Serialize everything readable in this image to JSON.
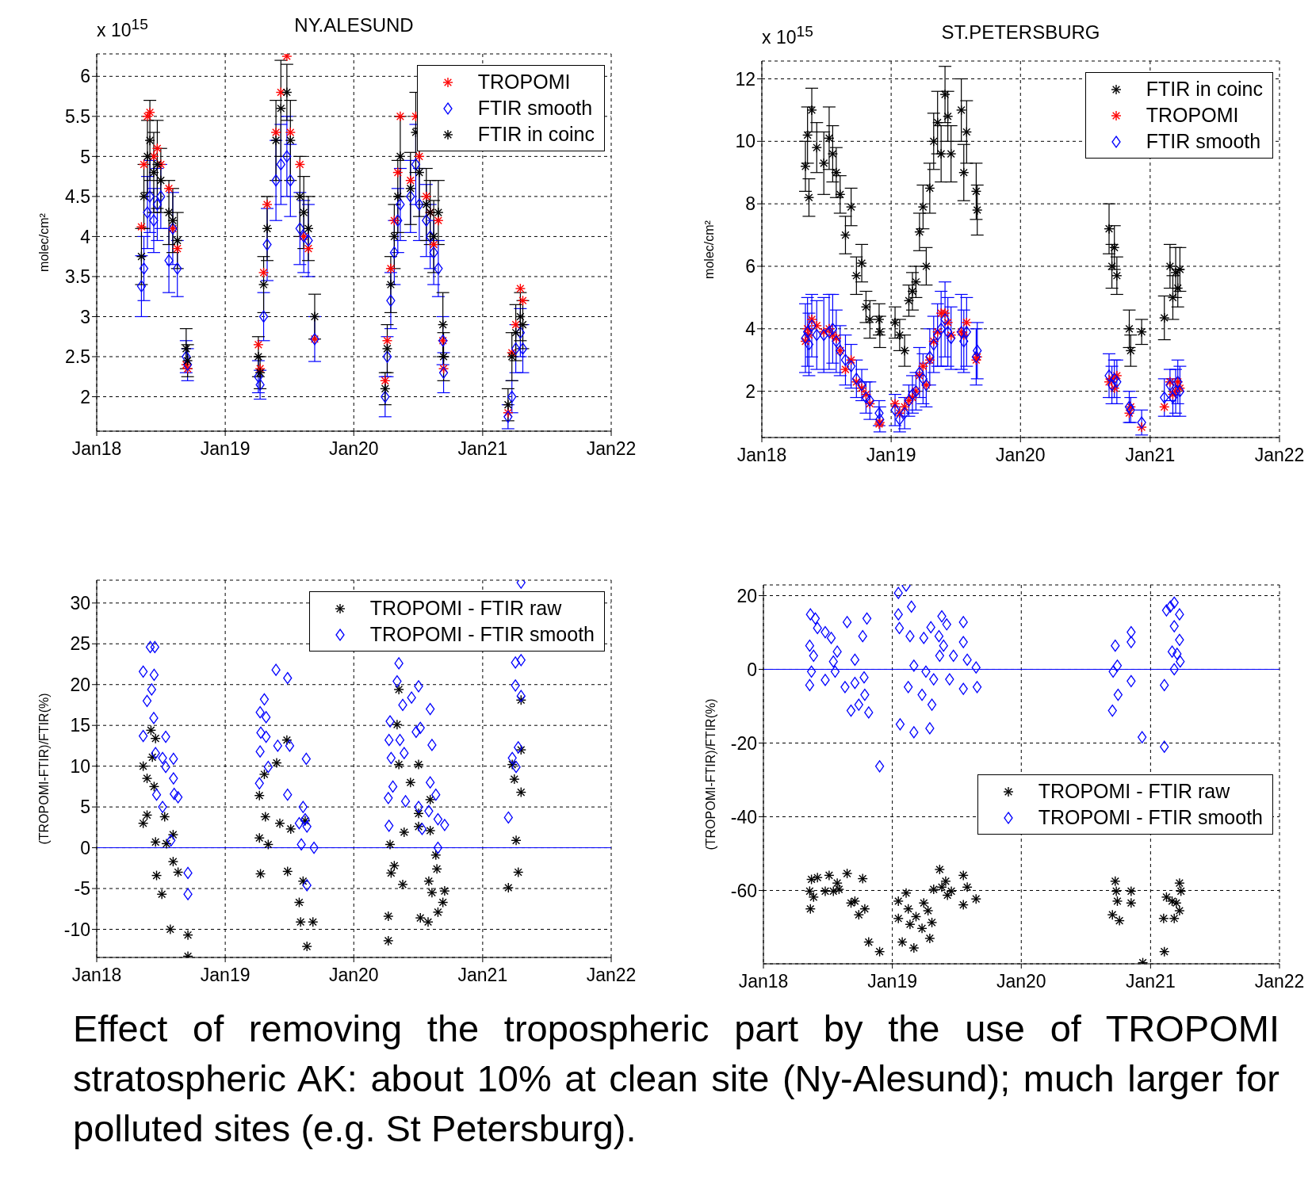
{
  "chart_data": [
    {
      "type": "scatter",
      "title": "NY.ALESUND",
      "ylabel": "molec/cm²",
      "annotations": [
        "x 10$^{15}$"
      ],
      "grid": true,
      "legend": "top right",
      "xlim": [
        "2018-01-01",
        "2022-01-01"
      ],
      "xticks": [
        {
          "value": "2018-01-01",
          "label": "Jan18"
        },
        {
          "value": "2019-01-01",
          "label": "Jan19"
        },
        {
          "value": "2020-01-01",
          "label": "Jan20"
        },
        {
          "value": "2021-01-01",
          "label": "Jan21"
        },
        {
          "value": "2022-01-01",
          "label": "Jan22"
        }
      ],
      "ylim": [
        1.57,
        6.28
      ],
      "yticks": [
        2,
        2.5,
        3,
        3.5,
        4,
        4.5,
        5,
        5.5,
        6
      ],
      "x": [
        "2018-05-08",
        "2018-05-15",
        "2018-05-25",
        "2018-06-01",
        "2018-06-12",
        "2018-06-22",
        "2018-07-02",
        "2018-07-25",
        "2018-08-05",
        "2018-08-18",
        "2018-09-12",
        "2018-09-16",
        "2019-04-05",
        "2019-04-10",
        "2019-04-20",
        "2019-04-30",
        "2019-05-25",
        "2019-06-08",
        "2019-06-25",
        "2019-07-05",
        "2019-08-01",
        "2019-08-12",
        "2019-08-25",
        "2019-09-12",
        "2020-03-30",
        "2020-04-05",
        "2020-04-15",
        "2020-04-25",
        "2020-05-05",
        "2020-05-12",
        "2020-06-10",
        "2020-06-25",
        "2020-07-05",
        "2020-07-25",
        "2020-08-05",
        "2020-08-15",
        "2020-08-28",
        "2020-09-10",
        "2020-09-12",
        "2021-03-14",
        "2021-03-25",
        "2021-04-05",
        "2021-04-18",
        "2021-04-25"
      ],
      "series": [
        {
          "name": "TROPOMI",
          "color": "#ff0000",
          "marker": "cross",
          "values": [
            4.12,
            4.9,
            5.5,
            5.55,
            5.0,
            5.1,
            4.9,
            4.6,
            4.1,
            3.85,
            2.4,
            2.35,
            2.65,
            2.35,
            3.55,
            4.4,
            5.3,
            5.8,
            6.25,
            5.3,
            4.9,
            4.0,
            3.85,
            2.72,
            2.2,
            2.7,
            3.6,
            4.2,
            4.8,
            5.5,
            4.7,
            5.5,
            5.0,
            4.5,
            4.3,
            3.9,
            4.2,
            2.7,
            2.35,
            1.8,
            2.55,
            2.9,
            3.35,
            3.2
          ]
        },
        {
          "name": "FTIR smooth",
          "color": "#0000ff",
          "marker": "diamond",
          "values": [
            3.38,
            3.6,
            4.3,
            4.5,
            4.2,
            4.4,
            4.5,
            3.7,
            4.1,
            3.6,
            2.5,
            2.4,
            2.25,
            2.15,
            3.0,
            3.9,
            4.7,
            4.9,
            5.0,
            4.7,
            4.1,
            4.0,
            3.95,
            2.72,
            2.0,
            2.5,
            3.2,
            3.8,
            4.2,
            4.4,
            4.5,
            4.9,
            4.4,
            4.2,
            4.0,
            3.8,
            3.6,
            2.7,
            2.3,
            1.75,
            2.0,
            2.6,
            2.8,
            2.6
          ],
          "errors": [
            0.38,
            0.4,
            0.45,
            0.45,
            0.4,
            0.45,
            0.4,
            0.4,
            0.45,
            0.35,
            0.2,
            0.2,
            0.2,
            0.18,
            0.3,
            0.45,
            0.5,
            0.5,
            0.5,
            0.45,
            0.45,
            0.45,
            0.45,
            0.28,
            0.25,
            0.25,
            0.35,
            0.4,
            0.4,
            0.45,
            0.45,
            0.5,
            0.45,
            0.45,
            0.4,
            0.4,
            0.35,
            0.3,
            0.25,
            0.15,
            0.2,
            0.3,
            0.3,
            0.3
          ]
        },
        {
          "name": "FTIR in coinc",
          "color": "#000000",
          "marker": "cross",
          "values": [
            3.75,
            4.5,
            5.0,
            5.2,
            4.8,
            4.9,
            4.7,
            4.3,
            4.2,
            3.95,
            2.6,
            2.45,
            2.5,
            2.3,
            3.4,
            4.1,
            5.2,
            5.6,
            5.8,
            5.2,
            4.5,
            4.3,
            4.1,
            3.0,
            2.1,
            2.6,
            3.4,
            4.0,
            4.5,
            5.0,
            4.6,
            5.3,
            4.8,
            4.4,
            4.3,
            4.0,
            4.3,
            2.9,
            2.5,
            1.9,
            2.5,
            2.8,
            3.0,
            2.9
          ],
          "errors": [
            0.35,
            0.4,
            0.45,
            0.5,
            0.5,
            0.55,
            0.4,
            0.4,
            0.4,
            0.35,
            0.25,
            0.2,
            0.25,
            0.2,
            0.35,
            0.4,
            0.5,
            0.6,
            0.35,
            0.5,
            0.5,
            0.45,
            0.4,
            0.28,
            0.2,
            0.3,
            0.35,
            0.4,
            0.45,
            0.5,
            0.45,
            0.5,
            0.55,
            0.45,
            0.4,
            0.45,
            0.4,
            0.4,
            0.3,
            0.2,
            0.3,
            0.35,
            0.3,
            0.3
          ]
        }
      ]
    },
    {
      "type": "scatter",
      "title": "ST.PETERSBURG",
      "ylabel": "molec/cm²",
      "annotations": [
        "x 10$^{15}$"
      ],
      "grid": true,
      "legend": "top right",
      "xlim": [
        "2018-01-01",
        "2022-01-01"
      ],
      "xticks": [
        {
          "value": "2018-01-01",
          "label": "Jan18"
        },
        {
          "value": "2019-01-01",
          "label": "Jan19"
        },
        {
          "value": "2020-01-01",
          "label": "Jan20"
        },
        {
          "value": "2021-01-01",
          "label": "Jan21"
        },
        {
          "value": "2022-01-01",
          "label": "Jan22"
        }
      ],
      "ylim": [
        0.52,
        12.57
      ],
      "yticks": [
        2,
        4,
        6,
        8,
        10,
        12
      ],
      "x": [
        "2018-05-04",
        "2018-05-10",
        "2018-05-14",
        "2018-05-22",
        "2018-06-05",
        "2018-06-25",
        "2018-07-10",
        "2018-07-20",
        "2018-07-30",
        "2018-08-10",
        "2018-08-25",
        "2018-09-10",
        "2018-09-25",
        "2018-10-10",
        "2018-10-22",
        "2018-11-02",
        "2018-11-28",
        "2018-11-30",
        "2019-01-12",
        "2019-01-25",
        "2019-02-08",
        "2019-02-20",
        "2019-03-02",
        "2019-03-12",
        "2019-03-22",
        "2019-04-01",
        "2019-04-10",
        "2019-04-20",
        "2019-05-01",
        "2019-05-12",
        "2019-05-22",
        "2019-06-02",
        "2019-06-10",
        "2019-06-19",
        "2019-07-18",
        "2019-07-25",
        "2019-08-02",
        "2019-08-29",
        "2019-09-01",
        "2020-09-07",
        "2020-09-15",
        "2020-09-22",
        "2020-09-29",
        "2020-11-03",
        "2020-11-07",
        "2020-12-08",
        "2021-02-10",
        "2021-02-26",
        "2021-03-06",
        "2021-03-14",
        "2021-03-20",
        "2021-03-26"
      ],
      "series": [
        {
          "name": "FTIR in coinc",
          "color": "#000000",
          "marker": "cross",
          "values": [
            9.2,
            10.2,
            8.2,
            11.0,
            9.8,
            9.3,
            10.1,
            9.6,
            9.0,
            8.3,
            7.0,
            7.9,
            5.7,
            6.1,
            4.7,
            4.3,
            4.3,
            3.9,
            4.2,
            3.8,
            3.3,
            4.9,
            5.2,
            5.5,
            7.1,
            7.9,
            6.0,
            8.5,
            10.0,
            10.6,
            9.6,
            11.5,
            10.8,
            9.6,
            11.0,
            9.0,
            10.3,
            8.4,
            7.8,
            7.2,
            6.0,
            6.6,
            5.7,
            4.0,
            3.3,
            3.9,
            4.35,
            6.0,
            5.0,
            5.8,
            5.3,
            5.9
          ],
          "errors": [
            0.8,
            0.9,
            0.6,
            0.7,
            0.8,
            1.0,
            1.0,
            0.9,
            0.8,
            0.6,
            0.6,
            0.6,
            0.6,
            0.6,
            0.5,
            0.6,
            0.5,
            0.5,
            0.5,
            0.5,
            0.5,
            0.5,
            0.6,
            0.5,
            0.6,
            0.7,
            0.6,
            0.8,
            0.9,
            1.0,
            0.9,
            0.9,
            0.8,
            0.9,
            1.0,
            0.9,
            1.0,
            0.9,
            0.8,
            0.8,
            0.7,
            0.7,
            0.6,
            0.6,
            0.5,
            0.4,
            0.7,
            0.7,
            0.7,
            0.8,
            0.6,
            0.7
          ]
        },
        {
          "name": "TROPOMI",
          "color": "#ff0000",
          "marker": "cross",
          "values": [
            3.6,
            4.0,
            3.8,
            4.3,
            4.1,
            3.9,
            4.0,
            3.8,
            3.7,
            3.3,
            2.7,
            3.0,
            2.3,
            2.1,
            1.9,
            1.6,
            0.95,
            1.0,
            1.6,
            1.3,
            1.5,
            1.7,
            1.8,
            2.0,
            2.5,
            2.8,
            2.2,
            3.0,
            3.6,
            3.9,
            4.5,
            4.5,
            4.2,
            3.8,
            3.9,
            3.8,
            4.2,
            3.0,
            3.1,
            2.3,
            2.4,
            2.1,
            2.5,
            1.3,
            1.5,
            0.85,
            1.5,
            2.3,
            1.9,
            2.0,
            2.3,
            2.1
          ]
        },
        {
          "name": "FTIR smooth",
          "color": "#0000ff",
          "marker": "diamond",
          "values": [
            3.7,
            3.9,
            3.5,
            4.1,
            3.8,
            3.8,
            3.9,
            4.0,
            3.6,
            3.3,
            3.0,
            2.8,
            2.4,
            2.2,
            1.8,
            1.7,
            1.3,
            1.1,
            1.4,
            1.1,
            1.3,
            1.7,
            1.9,
            2.0,
            2.6,
            2.4,
            2.2,
            3.1,
            3.5,
            3.8,
            4.0,
            4.3,
            3.9,
            3.7,
            3.9,
            3.6,
            3.9,
            3.1,
            3.3,
            2.5,
            2.2,
            2.4,
            2.3,
            1.5,
            1.4,
            1.0,
            1.8,
            2.2,
            1.8,
            2.0,
            2.3,
            2.0
          ],
          "errors": [
            1.1,
            1.1,
            1.0,
            1.0,
            1.1,
            1.2,
            1.2,
            1.1,
            1.0,
            0.8,
            0.8,
            0.7,
            0.6,
            0.5,
            0.5,
            0.6,
            0.4,
            0.4,
            0.5,
            0.4,
            0.5,
            0.5,
            0.6,
            0.6,
            0.8,
            0.8,
            0.7,
            0.9,
            0.9,
            1.0,
            1.2,
            1.2,
            1.1,
            1.0,
            1.2,
            1.0,
            1.1,
            0.9,
            0.9,
            0.7,
            0.6,
            0.6,
            0.7,
            0.5,
            0.4,
            0.4,
            0.6,
            0.5,
            0.6,
            0.7,
            0.7,
            0.8
          ]
        }
      ]
    },
    {
      "type": "scatter",
      "ylabel": "(TROPOMI-FTIR)/FTIR(%)",
      "grid": true,
      "legend": "top right",
      "xlim": [
        "2018-01-01",
        "2022-01-01"
      ],
      "xticks": [
        {
          "value": "2018-01-01",
          "label": "Jan18"
        },
        {
          "value": "2019-01-01",
          "label": "Jan19"
        },
        {
          "value": "2020-01-01",
          "label": "Jan20"
        },
        {
          "value": "2021-01-01",
          "label": "Jan21"
        },
        {
          "value": "2022-01-01",
          "label": "Jan22"
        }
      ],
      "ylim": [
        -13.45,
        32.8
      ],
      "yticks": [
        -10,
        -5,
        0,
        5,
        10,
        15,
        20,
        25,
        30
      ],
      "ref_lines": [
        {
          "axis": "y",
          "value": 0,
          "color": "#0000ff"
        }
      ],
      "series": [
        {
          "name": "TROPOMI - FTIR raw",
          "color": "#000000",
          "marker": "cross",
          "x": [
            "2018-05-13",
            "2018-05-13",
            "2018-05-24",
            "2018-05-24",
            "2018-06-04",
            "2018-06-08",
            "2018-06-13",
            "2018-06-17",
            "2018-06-20",
            "2018-06-17",
            "2018-07-05",
            "2018-07-13",
            "2018-07-18",
            "2018-07-29",
            "2018-08-06",
            "2018-08-06",
            "2018-08-20",
            "2018-09-17",
            "2018-09-17",
            "2019-04-08",
            "2019-04-08",
            "2019-04-11",
            "2019-04-22",
            "2019-04-25",
            "2019-05-03",
            "2019-05-27",
            "2019-06-05",
            "2019-06-25",
            "2019-06-27",
            "2019-07-06",
            "2019-07-30",
            "2019-08-03",
            "2019-08-10",
            "2019-08-16",
            "2019-08-21",
            "2019-09-07",
            "2020-04-08",
            "2020-04-08",
            "2020-04-13",
            "2020-04-16",
            "2020-04-25",
            "2020-05-03",
            "2020-05-08",
            "2020-05-08",
            "2020-05-19",
            "2020-05-23",
            "2020-06-10",
            "2020-07-03",
            "2020-07-03",
            "2020-07-03",
            "2020-07-08",
            "2020-07-30",
            "2020-08-01",
            "2020-08-05",
            "2020-08-05",
            "2020-08-10",
            "2020-08-21",
            "2020-08-24",
            "2020-08-27",
            "2020-09-10",
            "2020-09-15",
            "2021-03-15",
            "2021-03-26",
            "2021-04-01",
            "2021-04-06",
            "2021-04-12",
            "2021-04-20",
            "2021-04-20",
            "2021-04-20"
          ],
          "values": [
            10.0,
            3.0,
            8.5,
            4.0,
            14.4,
            11.1,
            7.5,
            0.7,
            -3.4,
            13.4,
            -5.7,
            3.8,
            0.5,
            -10.0,
            1.6,
            -1.7,
            -3.0,
            -10.7,
            -13.3,
            6.4,
            1.2,
            -3.2,
            9.0,
            3.8,
            0.4,
            10.4,
            3.0,
            13.2,
            -2.9,
            2.3,
            -6.7,
            -9.1,
            -4.1,
            3.3,
            -12.1,
            -9.1,
            -8.4,
            -11.4,
            0.4,
            -3.1,
            -2.2,
            15.1,
            19.4,
            10.2,
            -4.5,
            1.9,
            8.0,
            10.2,
            4.2,
            2.6,
            -8.6,
            -9.1,
            -4.1,
            5.9,
            2.1,
            -5.5,
            -0.9,
            -2.6,
            -7.9,
            -6.7,
            -5.3,
            -4.9,
            10.2,
            8.4,
            0.9,
            -3.0,
            18.1,
            6.8,
            12.0
          ]
        },
        {
          "name": "TROPOMI - FTIR smooth",
          "color": "#0000ff",
          "marker": "diamond",
          "x": [
            "2018-05-13",
            "2018-05-13",
            "2018-05-24",
            "2018-06-02",
            "2018-06-15",
            "2018-06-06",
            "2018-06-13",
            "2018-06-12",
            "2018-06-17",
            "2018-06-20",
            "2018-07-07",
            "2018-07-07",
            "2018-07-16",
            "2018-07-16",
            "2018-07-31",
            "2018-08-07",
            "2018-08-07",
            "2018-08-09",
            "2018-08-20",
            "2018-09-17",
            "2018-09-17",
            "2019-04-08",
            "2019-04-10",
            "2019-04-10",
            "2019-04-12",
            "2019-04-22",
            "2019-04-27",
            "2019-04-27",
            "2019-05-03",
            "2019-05-25",
            "2019-05-30",
            "2019-06-27",
            "2019-06-27",
            "2019-07-03",
            "2019-07-30",
            "2019-08-05",
            "2019-08-10",
            "2019-08-16",
            "2019-08-19",
            "2019-08-21",
            "2019-08-21",
            "2019-09-10",
            "2020-04-08",
            "2020-04-10",
            "2020-04-10",
            "2020-04-13",
            "2020-04-16",
            "2020-04-21",
            "2020-05-03",
            "2020-05-08",
            "2020-05-11",
            "2020-05-19",
            "2020-05-23",
            "2020-05-27",
            "2020-06-13",
            "2020-06-26",
            "2020-07-03",
            "2020-07-03",
            "2020-07-08",
            "2020-07-13",
            "2020-08-01",
            "2020-08-05",
            "2020-08-05",
            "2020-08-10",
            "2020-08-21",
            "2020-08-27",
            "2020-08-27",
            "2020-09-15",
            "2021-03-15",
            "2021-03-26",
            "2021-04-04",
            "2021-04-04",
            "2021-04-12",
            "2021-04-06",
            "2021-04-20",
            "2021-04-20",
            "2021-04-20"
          ],
          "values": [
            21.6,
            13.7,
            18.0,
            24.6,
            24.6,
            19.4,
            21.2,
            15.9,
            11.6,
            6.5,
            5.0,
            11.0,
            13.6,
            9.9,
            0.9,
            10.9,
            8.5,
            6.6,
            6.2,
            -3.1,
            -5.7,
            7.9,
            11.8,
            16.6,
            14.1,
            18.2,
            16.0,
            13.6,
            9.9,
            21.8,
            12.5,
            20.8,
            6.5,
            12.5,
            3.0,
            0.4,
            5.0,
            3.5,
            10.9,
            2.6,
            -4.6,
            0.0,
            6.1,
            2.7,
            13.2,
            15.5,
            11.0,
            7.5,
            20.4,
            22.6,
            13.2,
            17.5,
            11.6,
            5.7,
            18.4,
            14.2,
            19.8,
            5.0,
            14.7,
            2.3,
            4.5,
            8.0,
            17.0,
            12.6,
            6.5,
            3.5,
            0.0,
            2.8,
            3.7,
            11.0,
            22.7,
            19.9,
            12.3,
            9.9,
            23.0,
            18.6,
            32.5
          ]
        }
      ]
    },
    {
      "type": "scatter",
      "ylabel": "(TROPOMI-FTIR)/FTIR(%)",
      "grid": true,
      "legend": "right",
      "xlim": [
        "2018-01-01",
        "2022-01-01"
      ],
      "xticks": [
        {
          "value": "2018-01-01",
          "label": "Jan18"
        },
        {
          "value": "2019-01-01",
          "label": "Jan19"
        },
        {
          "value": "2020-01-01",
          "label": "Jan20"
        },
        {
          "value": "2021-01-01",
          "label": "Jan21"
        },
        {
          "value": "2022-01-01",
          "label": "Jan22"
        }
      ],
      "ylim": [
        -79.9,
        22.9
      ],
      "yticks": [
        -60,
        -40,
        -20,
        0,
        20
      ],
      "ref_lines": [
        {
          "axis": "y",
          "value": 0,
          "color": "#0000ff"
        }
      ],
      "series": [
        {
          "name": "TROPOMI - FTIR raw",
          "color": "#000000",
          "marker": "cross",
          "x": [
            "2018-05-12",
            "2018-05-14",
            "2018-05-17",
            "2018-05-23",
            "2018-06-03",
            "2018-06-25",
            "2018-07-06",
            "2018-07-18",
            "2018-07-29",
            "2018-08-03",
            "2018-08-26",
            "2018-09-06",
            "2018-09-17",
            "2018-09-28",
            "2018-10-09",
            "2018-10-15",
            "2018-10-26",
            "2018-11-26",
            "2019-01-18",
            "2019-01-18",
            "2019-01-29",
            "2019-02-09",
            "2019-02-15",
            "2019-02-20",
            "2019-03-03",
            "2019-03-09",
            "2019-03-26",
            "2019-03-31",
            "2019-04-12",
            "2019-04-17",
            "2019-04-23",
            "2019-04-28",
            "2019-05-15",
            "2019-05-21",
            "2019-06-01",
            "2019-06-06",
            "2019-06-17",
            "2019-07-21",
            "2019-07-21",
            "2019-08-01",
            "2019-08-26",
            "2020-09-15",
            "2020-09-23",
            "2020-09-26",
            "2020-09-29",
            "2020-10-05",
            "2020-11-07",
            "2020-11-07",
            "2020-12-10",
            "2021-02-07",
            "2021-02-09",
            "2021-02-15",
            "2021-03-03",
            "2021-03-09",
            "2021-03-15",
            "2021-03-24",
            "2021-03-24",
            "2021-03-28"
          ],
          "values": [
            -60.2,
            -65.0,
            -57.0,
            -61.8,
            -56.5,
            -60.2,
            -55.9,
            -60.2,
            -58.0,
            -59.7,
            -55.4,
            -63.4,
            -62.9,
            -66.6,
            -56.8,
            -65.0,
            -74.0,
            -76.6,
            -62.9,
            -67.6,
            -74.0,
            -60.7,
            -65.0,
            -69.2,
            -75.6,
            -67.1,
            -70.3,
            -63.4,
            -65.5,
            -73.0,
            -68.7,
            -59.7,
            -54.3,
            -59.1,
            -57.5,
            -61.3,
            -60.2,
            -55.9,
            -63.9,
            -59.1,
            -62.3,
            -66.6,
            -57.5,
            -60.2,
            -62.9,
            -68.2,
            -60.2,
            -63.4,
            -79.6,
            -67.6,
            -76.6,
            -61.8,
            -62.9,
            -67.6,
            -63.4,
            -58.0,
            -65.5,
            -60.2
          ]
        },
        {
          "name": "TROPOMI - FTIR smooth",
          "color": "#0000ff",
          "marker": "diamond",
          "x": [
            "2018-05-14",
            "2018-05-12",
            "2018-05-12",
            "2018-05-17",
            "2018-05-23",
            "2018-05-28",
            "2018-06-03",
            "2018-06-25",
            "2018-06-25",
            "2018-07-12",
            "2018-07-18",
            "2018-07-23",
            "2018-07-29",
            "2018-08-20",
            "2018-08-26",
            "2018-09-06",
            "2018-09-17",
            "2018-09-17",
            "2018-09-28",
            "2018-10-09",
            "2018-10-13",
            "2018-10-15",
            "2018-10-21",
            "2018-10-26",
            "2018-11-26",
            "2019-01-18",
            "2019-01-18",
            "2019-01-21",
            "2019-02-09",
            "2019-01-23",
            "2019-02-20",
            "2019-02-24",
            "2019-02-15",
            "2019-03-03",
            "2019-03-03",
            "2019-03-26",
            "2019-03-31",
            "2019-04-06",
            "2019-04-17",
            "2019-04-20",
            "2019-04-23",
            "2019-04-28",
            "2019-05-13",
            "2019-05-15",
            "2019-05-21",
            "2019-05-26",
            "2019-06-04",
            "2019-06-12",
            "2019-06-23",
            "2019-07-21",
            "2019-07-21",
            "2019-07-21",
            "2019-08-01",
            "2019-08-26",
            "2019-08-29",
            "2020-09-15",
            "2020-09-17",
            "2020-09-23",
            "2020-09-29",
            "2020-10-01",
            "2020-11-07",
            "2020-11-07",
            "2020-11-07",
            "2020-12-08",
            "2021-02-09",
            "2021-02-09",
            "2021-02-15",
            "2021-02-26",
            "2021-03-03",
            "2021-03-09",
            "2021-03-09",
            "2021-03-09",
            "2021-03-17",
            "2021-03-24",
            "2021-03-24",
            "2021-03-26"
          ],
          "values": [
            14.9,
            6.4,
            -4.3,
            -0.6,
            3.7,
            13.8,
            11.2,
            10.1,
            -2.9,
            8.5,
            2.1,
            -0.6,
            4.8,
            -4.8,
            12.8,
            -11.2,
            2.6,
            -3.7,
            -9.6,
            9.0,
            -2.2,
            -6.9,
            13.8,
            -11.7,
            -26.3,
            20.7,
            14.9,
            11.2,
            22.7,
            -14.9,
            9.0,
            17.0,
            -4.8,
            -17.1,
            1.0,
            -6.9,
            8.5,
            -0.6,
            -16.0,
            11.4,
            -9.6,
            -2.7,
            9.0,
            3.7,
            14.4,
            6.4,
            12.2,
            -2.7,
            3.7,
            12.8,
            7.4,
            -5.3,
            2.6,
            0.5,
            -4.8,
            -11.2,
            -0.6,
            6.4,
            1.0,
            -6.9,
            10.1,
            7.4,
            -3.2,
            -18.4,
            -4.3,
            -21.0,
            16.0,
            17.0,
            4.8,
            18.1,
            11.7,
            0.0,
            4.2,
            14.9,
            8.0,
            2.1
          ]
        }
      ]
    },
    {
      "type": "other",
      "annotations": [
        "Effect of removing the tropospheric part by the use of TROPOMI stratospheric AK: about 10% at clean site (Ny-Alesund); much larger for polluted sites (e.g. St Petersburg)."
      ]
    }
  ]
}
